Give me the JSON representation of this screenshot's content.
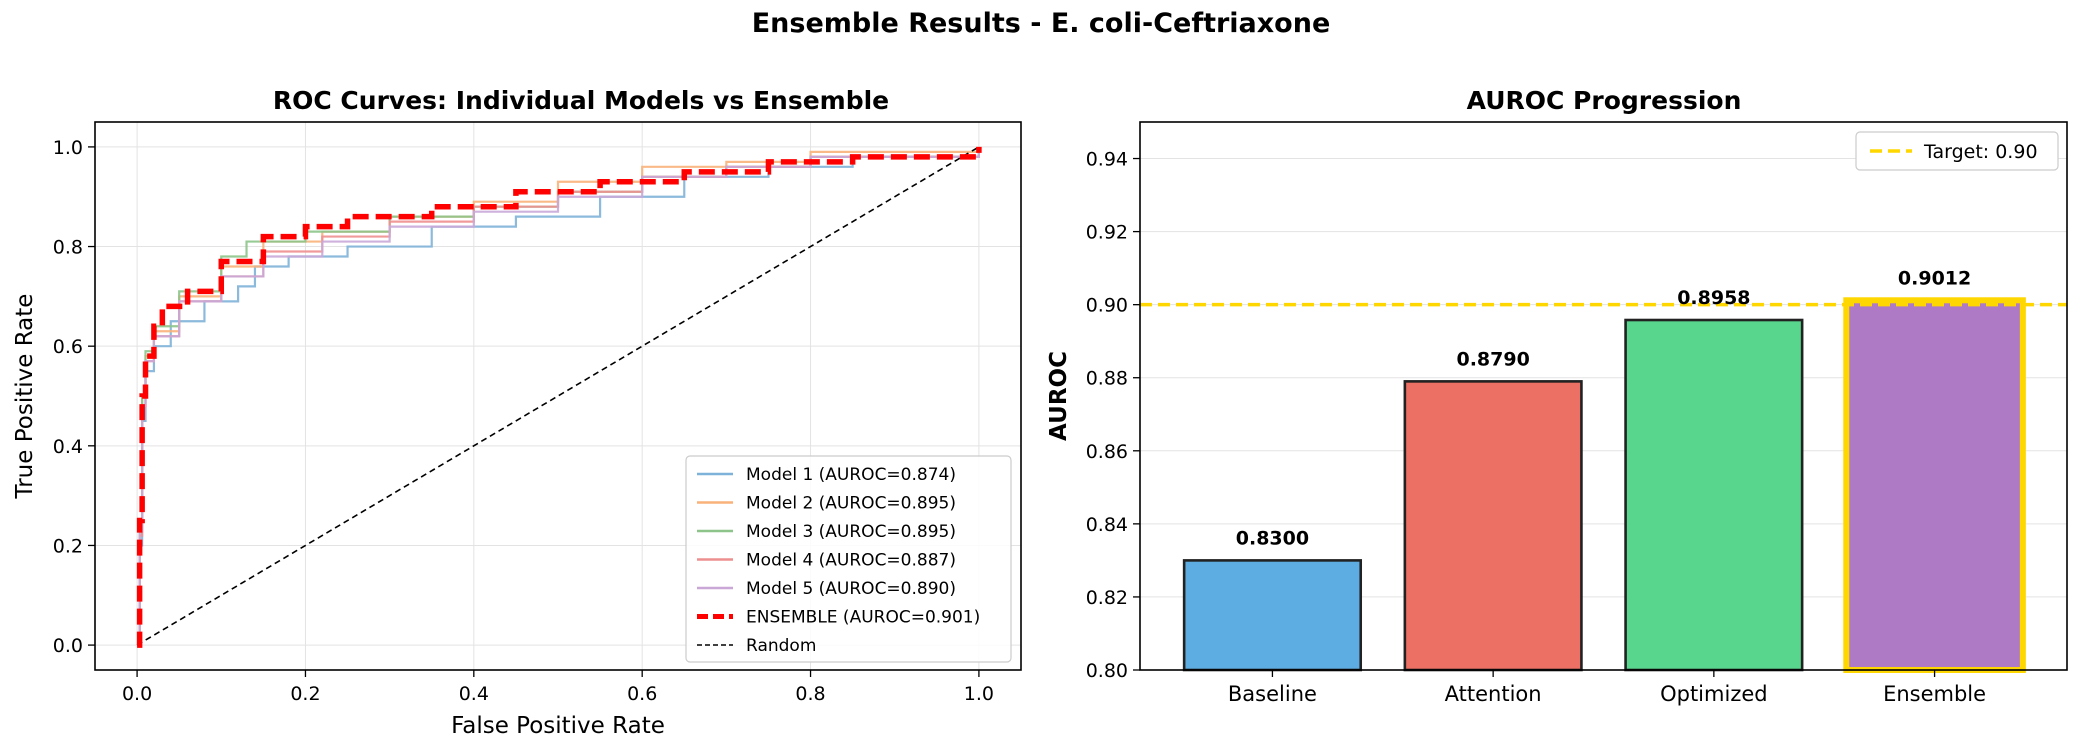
{
  "figure": {
    "suptitle": "Ensemble Results - E. coli-Ceftriaxone"
  },
  "chart_data": [
    {
      "type": "line",
      "title": "ROC Curves: Individual Models vs Ensemble",
      "xlabel": "False Positive Rate",
      "ylabel": "True Positive Rate",
      "xlim": [
        -0.05,
        1.05
      ],
      "ylim": [
        -0.05,
        1.05
      ],
      "xticks": [
        "0.0",
        "0.2",
        "0.4",
        "0.6",
        "0.8",
        "1.0"
      ],
      "yticks": [
        "0.0",
        "0.2",
        "0.4",
        "0.6",
        "0.8",
        "1.0"
      ],
      "grid": true,
      "legend_position": "lower-right",
      "series": [
        {
          "name": "Model 1 (AUROC=0.874)",
          "color": "#7fb2d8",
          "style": "solid",
          "points": [
            [
              0,
              0
            ],
            [
              0.003,
              0.2
            ],
            [
              0.006,
              0.45
            ],
            [
              0.01,
              0.55
            ],
            [
              0.02,
              0.6
            ],
            [
              0.04,
              0.65
            ],
            [
              0.08,
              0.69
            ],
            [
              0.12,
              0.72
            ],
            [
              0.14,
              0.76
            ],
            [
              0.18,
              0.78
            ],
            [
              0.25,
              0.8
            ],
            [
              0.35,
              0.84
            ],
            [
              0.45,
              0.86
            ],
            [
              0.55,
              0.9
            ],
            [
              0.65,
              0.94
            ],
            [
              0.75,
              0.96
            ],
            [
              0.85,
              0.98
            ],
            [
              1,
              0.99
            ]
          ]
        },
        {
          "name": "Model 2 (AUROC=0.895)",
          "color": "#f8b27a",
          "style": "solid",
          "points": [
            [
              0,
              0
            ],
            [
              0.003,
              0.25
            ],
            [
              0.006,
              0.5
            ],
            [
              0.01,
              0.58
            ],
            [
              0.02,
              0.63
            ],
            [
              0.05,
              0.7
            ],
            [
              0.1,
              0.76
            ],
            [
              0.15,
              0.81
            ],
            [
              0.22,
              0.83
            ],
            [
              0.3,
              0.86
            ],
            [
              0.4,
              0.89
            ],
            [
              0.5,
              0.93
            ],
            [
              0.6,
              0.96
            ],
            [
              0.7,
              0.97
            ],
            [
              0.8,
              0.99
            ],
            [
              1,
              1
            ]
          ]
        },
        {
          "name": "Model 3 (AUROC=0.895)",
          "color": "#8cc48a",
          "style": "solid",
          "points": [
            [
              0,
              0
            ],
            [
              0.003,
              0.25
            ],
            [
              0.006,
              0.5
            ],
            [
              0.01,
              0.59
            ],
            [
              0.02,
              0.64
            ],
            [
              0.05,
              0.71
            ],
            [
              0.1,
              0.78
            ],
            [
              0.13,
              0.81
            ],
            [
              0.2,
              0.83
            ],
            [
              0.3,
              0.86
            ],
            [
              0.4,
              0.88
            ],
            [
              0.5,
              0.91
            ],
            [
              0.6,
              0.94
            ],
            [
              0.7,
              0.96
            ],
            [
              0.8,
              0.98
            ],
            [
              1,
              0.99
            ]
          ]
        },
        {
          "name": "Model 4 (AUROC=0.887)",
          "color": "#ee8f8f",
          "style": "solid",
          "points": [
            [
              0,
              0
            ],
            [
              0.003,
              0.22
            ],
            [
              0.006,
              0.48
            ],
            [
              0.01,
              0.57
            ],
            [
              0.02,
              0.62
            ],
            [
              0.05,
              0.69
            ],
            [
              0.1,
              0.74
            ],
            [
              0.15,
              0.79
            ],
            [
              0.22,
              0.82
            ],
            [
              0.3,
              0.85
            ],
            [
              0.4,
              0.88
            ],
            [
              0.5,
              0.91
            ],
            [
              0.6,
              0.94
            ],
            [
              0.7,
              0.96
            ],
            [
              0.8,
              0.98
            ],
            [
              1,
              0.99
            ]
          ]
        },
        {
          "name": "Model 5 (AUROC=0.890)",
          "color": "#c9a8d8",
          "style": "solid",
          "points": [
            [
              0,
              0
            ],
            [
              0.003,
              0.23
            ],
            [
              0.006,
              0.48
            ],
            [
              0.01,
              0.57
            ],
            [
              0.02,
              0.62
            ],
            [
              0.05,
              0.69
            ],
            [
              0.1,
              0.74
            ],
            [
              0.15,
              0.78
            ],
            [
              0.22,
              0.81
            ],
            [
              0.3,
              0.84
            ],
            [
              0.4,
              0.87
            ],
            [
              0.5,
              0.9
            ],
            [
              0.6,
              0.94
            ],
            [
              0.7,
              0.96
            ],
            [
              0.8,
              0.98
            ],
            [
              1,
              0.99
            ]
          ]
        },
        {
          "name": "ENSEMBLE (AUROC=0.901)",
          "color": "#ff0000",
          "style": "dashed-thick",
          "points": [
            [
              0,
              0
            ],
            [
              0.003,
              0.25
            ],
            [
              0.006,
              0.5
            ],
            [
              0.01,
              0.58
            ],
            [
              0.02,
              0.64
            ],
            [
              0.03,
              0.68
            ],
            [
              0.06,
              0.71
            ],
            [
              0.1,
              0.77
            ],
            [
              0.15,
              0.82
            ],
            [
              0.2,
              0.84
            ],
            [
              0.25,
              0.86
            ],
            [
              0.35,
              0.88
            ],
            [
              0.45,
              0.91
            ],
            [
              0.55,
              0.93
            ],
            [
              0.65,
              0.95
            ],
            [
              0.75,
              0.97
            ],
            [
              0.85,
              0.98
            ],
            [
              1,
              1
            ]
          ]
        },
        {
          "name": "Random",
          "color": "#000000",
          "style": "dashed-thin",
          "points": [
            [
              0,
              0
            ],
            [
              1,
              1
            ]
          ]
        }
      ]
    },
    {
      "type": "bar",
      "title": "AUROC Progression",
      "xlabel": "",
      "ylabel": "AUROC",
      "ylim": [
        0.8,
        0.95
      ],
      "yticks": [
        "0.80",
        "0.82",
        "0.84",
        "0.86",
        "0.88",
        "0.90",
        "0.92",
        "0.94"
      ],
      "grid": true,
      "categories": [
        "Baseline",
        "Attention",
        "Optimized",
        "Ensemble"
      ],
      "values": [
        0.83,
        0.879,
        0.8958,
        0.9012
      ],
      "value_labels": [
        "0.8300",
        "0.8790",
        "0.8958",
        "0.9012"
      ],
      "colors": [
        "#5dade2",
        "#ec7063",
        "#58d68d",
        "#af7ac5"
      ],
      "highlight": {
        "category": "Ensemble",
        "edge_color": "#ffd700"
      },
      "reference_line": {
        "label": "Target: 0.90",
        "value": 0.9,
        "color": "#ffd700"
      },
      "legend_position": "top-right"
    }
  ]
}
